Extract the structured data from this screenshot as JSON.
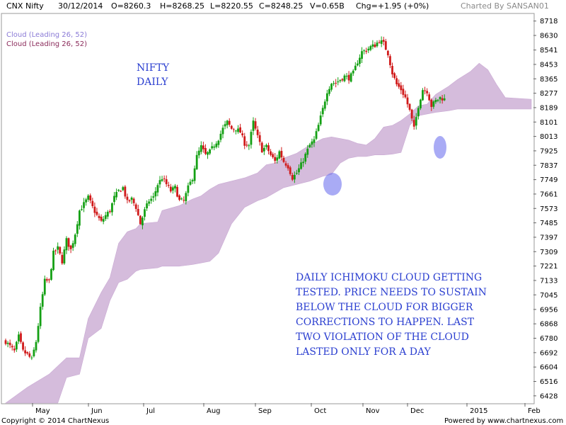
{
  "header": {
    "symbol": "CNX Nifty",
    "date": "30/12/2014",
    "open": "O=8260.3",
    "high": "H=8268.25",
    "low": "L=8220.55",
    "close": "C=8248.25",
    "volume": "V=0.65B",
    "change": "Chg=+1.95 (+0%)",
    "charted_by": "Charted By SANSAN01"
  },
  "legend": {
    "cloud_a": "Cloud (Leading 26, 52)",
    "cloud_b": "Cloud (Leading 26, 52)"
  },
  "annotations": {
    "title_line1": "NIFTY",
    "title_line2": "DAILY",
    "note_lines": [
      "DAILY ICHIMOKU CLOUD GETTING",
      "TESTED. PRICE NEEDS TO SUSTAIN",
      "BELOW THE CLOUD FOR BIGGER",
      "CORRECTIONS TO HAPPEN. LAST",
      "TWO VIOLATION OF THE CLOUD",
      "LASTED ONLY FOR A DAY"
    ]
  },
  "footer": {
    "copyright": "Copyright © 2014 ChartNexus",
    "powered": "Powered by www.chartnexus.com"
  },
  "colors": {
    "up": "#14a014",
    "down": "#d01a1a",
    "cloud": "#d5bcdc",
    "cloud_edge": "#c9a9d3",
    "highlight": "#6f73ee"
  },
  "chart_data": {
    "type": "candlestick",
    "ylim": [
      6384,
      8760
    ],
    "y_ticks": [
      "8718",
      "8630",
      "8541",
      "8453",
      "8365",
      "8277",
      "8189",
      "8101",
      "8013",
      "7925",
      "7837",
      "7749",
      "7661",
      "7573",
      "7485",
      "7397",
      "7309",
      "7221",
      "7133",
      "7045",
      "6956",
      "6868",
      "6780",
      "6692",
      "6604",
      "6516",
      "6428"
    ],
    "x_ticks": [
      "May",
      "Jun",
      "Jul",
      "Aug",
      "Sep",
      "Oct",
      "Nov",
      "Dec",
      "2015",
      "Feb"
    ],
    "price_path": [
      [
        0,
        6760
      ],
      [
        2,
        6730
      ],
      [
        4,
        6700
      ],
      [
        6,
        6790
      ],
      [
        8,
        6700
      ],
      [
        10,
        6680
      ],
      [
        12,
        6650
      ],
      [
        14,
        6760
      ],
      [
        16,
        6960
      ],
      [
        18,
        7130
      ],
      [
        20,
        7130
      ],
      [
        22,
        7300
      ],
      [
        24,
        7330
      ],
      [
        26,
        7250
      ],
      [
        28,
        7380
      ],
      [
        30,
        7320
      ],
      [
        32,
        7420
      ],
      [
        34,
        7560
      ],
      [
        36,
        7600
      ],
      [
        38,
        7640
      ],
      [
        40,
        7580
      ],
      [
        42,
        7530
      ],
      [
        44,
        7490
      ],
      [
        46,
        7530
      ],
      [
        48,
        7560
      ],
      [
        50,
        7640
      ],
      [
        52,
        7680
      ],
      [
        54,
        7700
      ],
      [
        56,
        7610
      ],
      [
        58,
        7630
      ],
      [
        60,
        7580
      ],
      [
        62,
        7480
      ],
      [
        64,
        7560
      ],
      [
        66,
        7620
      ],
      [
        68,
        7640
      ],
      [
        70,
        7720
      ],
      [
        72,
        7760
      ],
      [
        74,
        7720
      ],
      [
        76,
        7680
      ],
      [
        78,
        7700
      ],
      [
        80,
        7620
      ],
      [
        82,
        7620
      ],
      [
        84,
        7700
      ],
      [
        86,
        7760
      ],
      [
        88,
        7890
      ],
      [
        90,
        7950
      ],
      [
        92,
        7900
      ],
      [
        94,
        7920
      ],
      [
        96,
        7960
      ],
      [
        98,
        8000
      ],
      [
        100,
        8060
      ],
      [
        102,
        8100
      ],
      [
        104,
        8060
      ],
      [
        106,
        8060
      ],
      [
        108,
        8040
      ],
      [
        110,
        7970
      ],
      [
        112,
        7960
      ],
      [
        114,
        8100
      ],
      [
        116,
        8010
      ],
      [
        118,
        7930
      ],
      [
        120,
        7950
      ],
      [
        122,
        7900
      ],
      [
        124,
        7860
      ],
      [
        126,
        7920
      ],
      [
        128,
        7860
      ],
      [
        130,
        7830
      ],
      [
        132,
        7760
      ],
      [
        134,
        7790
      ],
      [
        136,
        7840
      ],
      [
        138,
        7900
      ],
      [
        140,
        7960
      ],
      [
        142,
        7990
      ],
      [
        144,
        8080
      ],
      [
        146,
        8180
      ],
      [
        148,
        8290
      ],
      [
        150,
        8340
      ],
      [
        152,
        8340
      ],
      [
        154,
        8360
      ],
      [
        156,
        8380
      ],
      [
        158,
        8370
      ],
      [
        160,
        8400
      ],
      [
        162,
        8470
      ],
      [
        164,
        8530
      ],
      [
        166,
        8540
      ],
      [
        168,
        8560
      ],
      [
        170,
        8570
      ],
      [
        172,
        8600
      ],
      [
        174,
        8580
      ],
      [
        176,
        8520
      ],
      [
        178,
        8400
      ],
      [
        180,
        8330
      ],
      [
        182,
        8300
      ],
      [
        184,
        8250
      ],
      [
        186,
        8170
      ],
      [
        188,
        8060
      ],
      [
        190,
        8200
      ],
      [
        192,
        8300
      ],
      [
        194,
        8290
      ],
      [
        196,
        8200
      ],
      [
        198,
        8230
      ],
      [
        200,
        8250
      ],
      [
        202,
        8240
      ]
    ],
    "cloud_top": [
      [
        0,
        6384
      ],
      [
        10,
        6480
      ],
      [
        20,
        6560
      ],
      [
        28,
        6660
      ],
      [
        34,
        6660
      ],
      [
        38,
        6900
      ],
      [
        44,
        7060
      ],
      [
        48,
        7150
      ],
      [
        52,
        7360
      ],
      [
        56,
        7430
      ],
      [
        60,
        7450
      ],
      [
        62,
        7480
      ],
      [
        70,
        7490
      ],
      [
        72,
        7560
      ],
      [
        80,
        7590
      ],
      [
        86,
        7630
      ],
      [
        90,
        7650
      ],
      [
        94,
        7690
      ],
      [
        98,
        7720
      ],
      [
        104,
        7740
      ],
      [
        110,
        7760
      ],
      [
        116,
        7790
      ],
      [
        120,
        7840
      ],
      [
        124,
        7850
      ],
      [
        128,
        7880
      ],
      [
        134,
        7910
      ],
      [
        140,
        7960
      ],
      [
        146,
        8000
      ],
      [
        150,
        8010
      ],
      [
        154,
        8000
      ],
      [
        158,
        7990
      ],
      [
        162,
        7970
      ],
      [
        166,
        7960
      ],
      [
        170,
        8000
      ],
      [
        174,
        8070
      ],
      [
        178,
        8080
      ],
      [
        182,
        8110
      ],
      [
        186,
        8150
      ],
      [
        190,
        8200
      ],
      [
        194,
        8210
      ],
      [
        198,
        8270
      ],
      [
        204,
        8320
      ],
      [
        208,
        8360
      ],
      [
        214,
        8410
      ],
      [
        218,
        8460
      ],
      [
        222,
        8420
      ],
      [
        226,
        8330
      ],
      [
        230,
        8250
      ],
      [
        242,
        8240
      ]
    ],
    "cloud_bottom": [
      [
        0,
        6384
      ],
      [
        24,
        6384
      ],
      [
        28,
        6540
      ],
      [
        34,
        6560
      ],
      [
        38,
        6780
      ],
      [
        44,
        6840
      ],
      [
        48,
        7010
      ],
      [
        52,
        7120
      ],
      [
        56,
        7140
      ],
      [
        60,
        7190
      ],
      [
        62,
        7200
      ],
      [
        70,
        7210
      ],
      [
        72,
        7220
      ],
      [
        80,
        7220
      ],
      [
        86,
        7230
      ],
      [
        90,
        7240
      ],
      [
        94,
        7250
      ],
      [
        98,
        7300
      ],
      [
        104,
        7480
      ],
      [
        110,
        7580
      ],
      [
        116,
        7620
      ],
      [
        120,
        7640
      ],
      [
        124,
        7670
      ],
      [
        128,
        7700
      ],
      [
        134,
        7720
      ],
      [
        140,
        7740
      ],
      [
        146,
        7770
      ],
      [
        150,
        7780
      ],
      [
        154,
        7850
      ],
      [
        158,
        7880
      ],
      [
        162,
        7890
      ],
      [
        166,
        7890
      ],
      [
        170,
        7900
      ],
      [
        174,
        7900
      ],
      [
        178,
        7905
      ],
      [
        182,
        7915
      ],
      [
        186,
        8080
      ],
      [
        190,
        8140
      ],
      [
        194,
        8150
      ],
      [
        198,
        8160
      ],
      [
        204,
        8170
      ],
      [
        208,
        8180
      ],
      [
        214,
        8180
      ],
      [
        222,
        8180
      ],
      [
        242,
        8180
      ]
    ]
  }
}
